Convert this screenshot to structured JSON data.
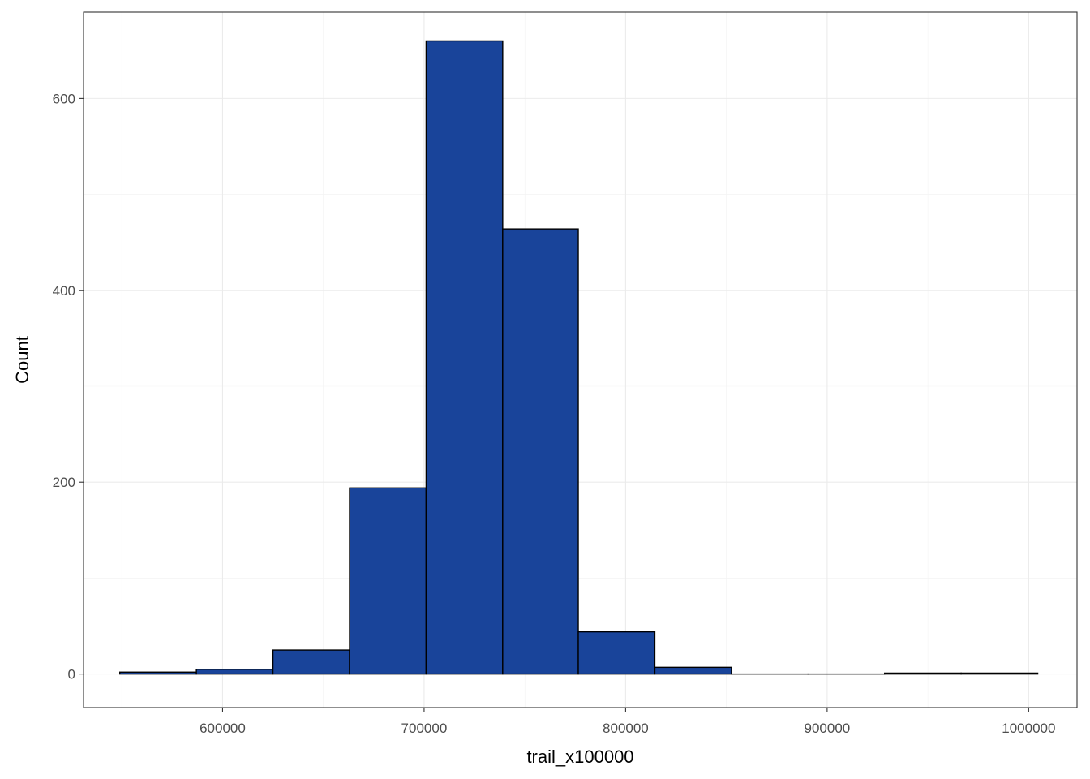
{
  "chart_data": {
    "type": "bar",
    "subtype": "histogram",
    "xlabel": "trail_x100000",
    "ylabel": "Count",
    "xlim": [
      531000,
      1024000
    ],
    "ylim": [
      -35,
      690
    ],
    "x_ticks": [
      600000,
      700000,
      800000,
      900000,
      1000000
    ],
    "x_tick_labels": [
      "600000",
      "700000",
      "800000",
      "900000",
      "1000000"
    ],
    "y_ticks": [
      0,
      200,
      400,
      600
    ],
    "y_tick_labels": [
      "0",
      "200",
      "400",
      "600"
    ],
    "bins": [
      {
        "x0": 549000,
        "x1": 587000,
        "count": 2
      },
      {
        "x0": 587000,
        "x1": 625000,
        "count": 5
      },
      {
        "x0": 625000,
        "x1": 663000,
        "count": 25
      },
      {
        "x0": 663000,
        "x1": 701000,
        "count": 194
      },
      {
        "x0": 701000,
        "x1": 739000,
        "count": 660
      },
      {
        "x0": 739000,
        "x1": 776500,
        "count": 464
      },
      {
        "x0": 776500,
        "x1": 814500,
        "count": 44
      },
      {
        "x0": 814500,
        "x1": 852500,
        "count": 7
      },
      {
        "x0": 852500,
        "x1": 890500,
        "count": 0
      },
      {
        "x0": 890500,
        "x1": 928500,
        "count": 0
      },
      {
        "x0": 928500,
        "x1": 966500,
        "count": 1
      },
      {
        "x0": 966500,
        "x1": 1004500,
        "count": 1
      }
    ],
    "bar_fill": "#19449a",
    "bar_outline": "#000000",
    "grid": true,
    "legend": "none"
  }
}
